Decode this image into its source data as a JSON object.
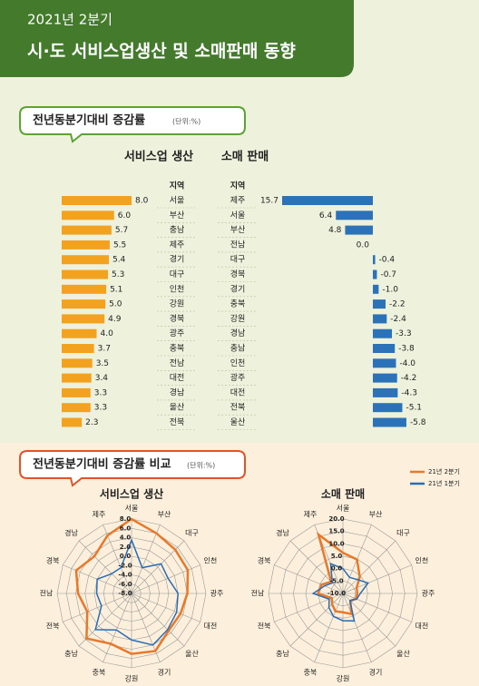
{
  "header": {
    "year": "2021년 2분기",
    "title": "시·도 서비스업생산 및 소매판매 동향"
  },
  "section1": {
    "title": "전년동분기대비 증감률",
    "unit": "(단위:%)"
  },
  "section2": {
    "title": "전년동분기대비 증감률 비교",
    "unit": "(단위:%)"
  },
  "chart_data": [
    {
      "type": "bar",
      "title": "서비스업 생산",
      "category_label": "지역",
      "color": "#f3a21f",
      "categories": [
        "서울",
        "부산",
        "충남",
        "제주",
        "경기",
        "대구",
        "인천",
        "강원",
        "경북",
        "광주",
        "충북",
        "전남",
        "대전",
        "경남",
        "울산",
        "전북"
      ],
      "values": [
        8.0,
        6.0,
        5.7,
        5.5,
        5.4,
        5.3,
        5.1,
        5.0,
        4.9,
        4.0,
        3.7,
        3.5,
        3.4,
        3.3,
        3.3,
        2.3
      ],
      "value_labels": [
        "8.0",
        "6.0",
        "5.7",
        "5.5",
        "5.4",
        "5.3",
        "5.1",
        "5.0",
        "4.9",
        "4.0",
        "3.7",
        "3.5",
        "3.4",
        "3.3",
        "3.3",
        "2.3"
      ]
    },
    {
      "type": "bar",
      "title": "소매 판매",
      "category_label": "지역",
      "color": "#2b72b9",
      "categories": [
        "제주",
        "서울",
        "부산",
        "전남",
        "대구",
        "경북",
        "경기",
        "충북",
        "강원",
        "경남",
        "충남",
        "인천",
        "광주",
        "대전",
        "전북",
        "울산"
      ],
      "values": [
        15.7,
        6.4,
        4.8,
        0.0,
        -0.4,
        -0.7,
        -1.0,
        -2.2,
        -2.4,
        -3.3,
        -3.8,
        -4.0,
        -4.2,
        -4.3,
        -5.1,
        -5.8
      ],
      "value_labels": [
        "15.7",
        "6.4",
        "4.8",
        "0.0",
        "-0.4",
        "-0.7",
        "-1.0",
        "-2.2",
        "-2.4",
        "-3.3",
        "-3.8",
        "-4.0",
        "-4.2",
        "-4.3",
        "-5.1",
        "-5.8"
      ]
    },
    {
      "type": "radar",
      "title": "서비스업 생산",
      "categories": [
        "서울",
        "부산",
        "대구",
        "인천",
        "광주",
        "대전",
        "울산",
        "경기",
        "강원",
        "충북",
        "충남",
        "전북",
        "전남",
        "경북",
        "경남",
        "제주"
      ],
      "rlim": [
        -8,
        8
      ],
      "rticks": [
        {
          "value": 8,
          "label": "8.0"
        },
        {
          "value": 6,
          "label": "6.0"
        },
        {
          "value": 4,
          "label": "4.0"
        },
        {
          "value": 2,
          "label": "2.0"
        },
        {
          "value": 0,
          "label": "0.0"
        },
        {
          "value": -2,
          "label": "-2.0"
        },
        {
          "value": -4,
          "label": "-4.0"
        },
        {
          "value": -6,
          "label": "-6.0"
        },
        {
          "value": -8,
          "label": "-8.0"
        }
      ],
      "series": [
        {
          "color": "#e8782a",
          "values": [
            8.0,
            6.0,
            5.3,
            5.1,
            4.0,
            3.4,
            3.3,
            5.4,
            5.0,
            3.7,
            5.7,
            2.3,
            3.5,
            4.9,
            3.3,
            5.5
          ]
        },
        {
          "color": "#2a6db5",
          "values": [
            3.5,
            -2,
            1,
            0.5,
            2,
            2.5,
            3,
            4,
            2,
            0.5,
            3,
            -1,
            -0.5,
            0,
            -2,
            -2
          ]
        }
      ]
    },
    {
      "type": "radar",
      "title": "소매 판매",
      "categories": [
        "서울",
        "부산",
        "대구",
        "인천",
        "광주",
        "대전",
        "울산",
        "경기",
        "강원",
        "충북",
        "충남",
        "전북",
        "전남",
        "경북",
        "경남",
        "제주"
      ],
      "rlim": [
        -10,
        20
      ],
      "rticks": [
        {
          "value": 20,
          "label": "20.0"
        },
        {
          "value": 15,
          "label": "15.0"
        },
        {
          "value": 10,
          "label": "10.0"
        },
        {
          "value": 5,
          "label": "5.0"
        },
        {
          "value": 0,
          "label": "0.0"
        },
        {
          "value": -5,
          "label": "-5.0"
        },
        {
          "value": -10,
          "label": "-10.0"
        }
      ],
      "series": [
        {
          "name": "21년 2분기",
          "color": "#e8782a",
          "values": [
            6.4,
            4.8,
            -0.4,
            -4.0,
            -4.2,
            -4.3,
            -5.8,
            -1.0,
            -2.4,
            -2.2,
            -3.8,
            -5.1,
            0.0,
            -0.7,
            -3.3,
            15.7
          ]
        },
        {
          "name": "21년 1분기",
          "color": "#2a6db5",
          "values": [
            0,
            -3,
            -2,
            1,
            -3,
            -4,
            -6,
            2,
            1,
            0,
            -2,
            -4,
            2,
            -2,
            -4,
            3
          ]
        }
      ]
    }
  ]
}
